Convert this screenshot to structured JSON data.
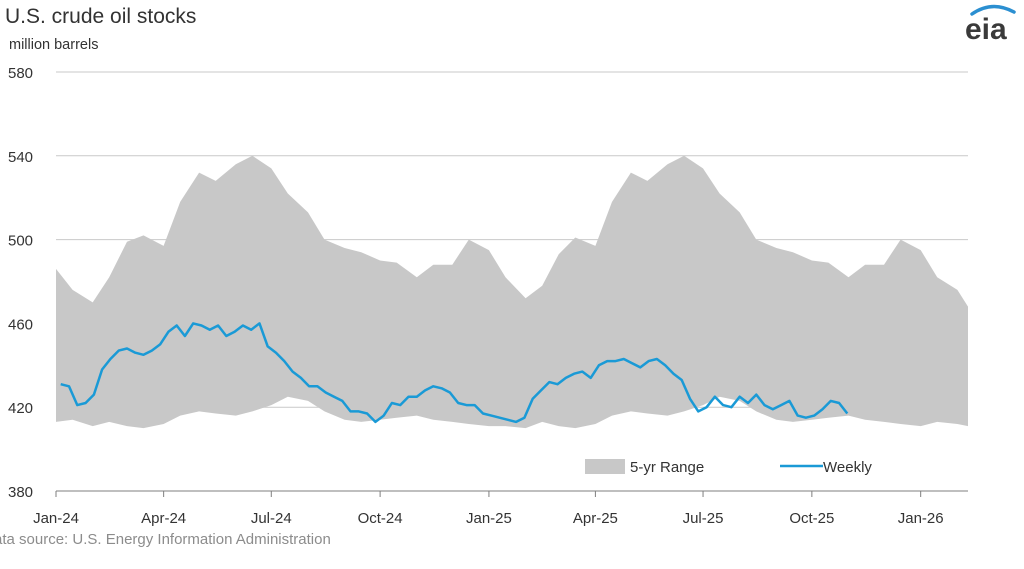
{
  "header": {
    "title": "U.S. crude oil stocks",
    "units": "million barrels",
    "logo_text": "eia",
    "logo_icon": "eia-logo-icon"
  },
  "footer": {
    "source": "ata source: U.S. Energy Information Administration"
  },
  "colors": {
    "range_fill": "#c8c8c8",
    "weekly_line": "#1a9ad6",
    "grid": "#c9c9c9",
    "axis": "#7f7f7f",
    "logo_swoosh": "#2b8fd1"
  },
  "chart_data": {
    "type": "area",
    "title": "U.S. crude oil stocks",
    "ylabel": "million barrels",
    "ylim": [
      380,
      580
    ],
    "yticks": [
      380,
      420,
      460,
      500,
      540,
      580
    ],
    "xlim": [
      "2024-01-01",
      "2026-02-10"
    ],
    "xticks": [
      {
        "date": "2024-01-01",
        "label": "Jan-24"
      },
      {
        "date": "2024-04-01",
        "label": "Apr-24"
      },
      {
        "date": "2024-07-01",
        "label": "Jul-24"
      },
      {
        "date": "2024-10-01",
        "label": "Oct-24"
      },
      {
        "date": "2025-01-01",
        "label": "Jan-25"
      },
      {
        "date": "2025-04-01",
        "label": "Apr-25"
      },
      {
        "date": "2025-07-01",
        "label": "Jul-25"
      },
      {
        "date": "2025-10-01",
        "label": "Oct-25"
      },
      {
        "date": "2026-01-01",
        "label": "Jan-26"
      }
    ],
    "grid": true,
    "legend_position": "bottom-right",
    "series": [
      {
        "name": "5-yr Range",
        "kind": "band",
        "x": [
          "2024-01-01",
          "2024-01-15",
          "2024-02-01",
          "2024-02-15",
          "2024-03-01",
          "2024-03-15",
          "2024-04-01",
          "2024-04-15",
          "2024-05-01",
          "2024-05-15",
          "2024-06-01",
          "2024-06-15",
          "2024-07-01",
          "2024-07-15",
          "2024-08-01",
          "2024-08-15",
          "2024-09-01",
          "2024-09-15",
          "2024-10-01",
          "2024-10-15",
          "2024-11-01",
          "2024-11-15",
          "2024-12-01",
          "2024-12-15",
          "2025-01-01",
          "2025-01-15",
          "2025-02-01",
          "2025-02-15",
          "2025-03-01",
          "2025-03-15",
          "2025-04-01",
          "2025-04-15",
          "2025-05-01",
          "2025-05-15",
          "2025-06-01",
          "2025-06-15",
          "2025-07-01",
          "2025-07-15",
          "2025-08-01",
          "2025-08-15",
          "2025-09-01",
          "2025-09-15",
          "2025-10-01",
          "2025-10-15",
          "2025-11-01",
          "2025-11-15",
          "2025-12-01",
          "2025-12-15",
          "2026-01-01",
          "2026-01-15",
          "2026-02-01",
          "2026-02-10"
        ],
        "high": [
          486,
          476,
          470,
          482,
          499,
          502,
          497,
          518,
          532,
          528,
          536,
          540,
          534,
          522,
          513,
          500,
          496,
          494,
          490,
          489,
          482,
          488,
          488,
          500,
          495,
          482,
          472,
          478,
          493,
          501,
          497,
          518,
          532,
          528,
          536,
          540,
          534,
          522,
          513,
          500,
          496,
          494,
          490,
          489,
          482,
          488,
          488,
          500,
          495,
          482,
          476,
          468
        ],
        "low": [
          413,
          414,
          411,
          413,
          411,
          410,
          412,
          416,
          418,
          417,
          416,
          418,
          421,
          425,
          423,
          418,
          414,
          413,
          414,
          415,
          416,
          414,
          413,
          412,
          411,
          411,
          410,
          413,
          411,
          410,
          412,
          416,
          418,
          417,
          416,
          418,
          421,
          425,
          423,
          418,
          414,
          413,
          414,
          415,
          416,
          414,
          413,
          412,
          411,
          413,
          412,
          411
        ]
      },
      {
        "name": "Weekly",
        "kind": "line",
        "x": [
          "2024-01-05",
          "2024-01-12",
          "2024-01-19",
          "2024-01-26",
          "2024-02-02",
          "2024-02-09",
          "2024-02-16",
          "2024-02-23",
          "2024-03-01",
          "2024-03-08",
          "2024-03-15",
          "2024-03-22",
          "2024-03-29",
          "2024-04-05",
          "2024-04-12",
          "2024-04-19",
          "2024-04-26",
          "2024-05-03",
          "2024-05-10",
          "2024-05-17",
          "2024-05-24",
          "2024-05-31",
          "2024-06-07",
          "2024-06-14",
          "2024-06-21",
          "2024-06-28",
          "2024-07-05",
          "2024-07-12",
          "2024-07-19",
          "2024-07-26",
          "2024-08-02",
          "2024-08-09",
          "2024-08-16",
          "2024-08-23",
          "2024-08-30",
          "2024-09-06",
          "2024-09-13",
          "2024-09-20",
          "2024-09-27",
          "2024-10-04",
          "2024-10-11",
          "2024-10-18",
          "2024-10-25",
          "2024-11-01",
          "2024-11-08",
          "2024-11-15",
          "2024-11-22",
          "2024-11-29",
          "2024-12-06",
          "2024-12-13",
          "2024-12-20",
          "2024-12-27",
          "2025-01-03",
          "2025-01-10",
          "2025-01-17",
          "2025-01-24",
          "2025-01-31",
          "2025-02-07",
          "2025-02-14",
          "2025-02-21",
          "2025-02-28",
          "2025-03-07",
          "2025-03-14",
          "2025-03-21",
          "2025-03-28",
          "2025-04-04",
          "2025-04-11",
          "2025-04-18",
          "2025-04-25",
          "2025-05-02",
          "2025-05-09",
          "2025-05-16",
          "2025-05-23",
          "2025-05-30",
          "2025-06-06",
          "2025-06-13",
          "2025-06-20",
          "2025-06-27",
          "2025-07-04",
          "2025-07-11",
          "2025-07-18",
          "2025-07-25",
          "2025-08-01",
          "2025-08-08",
          "2025-08-15",
          "2025-08-22",
          "2025-08-29",
          "2025-09-05",
          "2025-09-12",
          "2025-09-19",
          "2025-09-26",
          "2025-10-03",
          "2025-10-10",
          "2025-10-17",
          "2025-10-24",
          "2025-10-31"
        ],
        "values": [
          431,
          430,
          421,
          422,
          426,
          438,
          443,
          447,
          448,
          446,
          445,
          447,
          450,
          456,
          459,
          454,
          460,
          459,
          457,
          459,
          454,
          456,
          459,
          457,
          460,
          449,
          446,
          442,
          437,
          434,
          430,
          430,
          427,
          425,
          423,
          418,
          418,
          417,
          413,
          416,
          422,
          421,
          425,
          425,
          428,
          430,
          429,
          427,
          422,
          421,
          421,
          417,
          416,
          415,
          414,
          413,
          415,
          424,
          428,
          432,
          431,
          434,
          436,
          437,
          434,
          440,
          442,
          442,
          443,
          441,
          439,
          442,
          443,
          440,
          436,
          433,
          424,
          418,
          420,
          425,
          421,
          420,
          425,
          422,
          426,
          421,
          419,
          421,
          423,
          416,
          415,
          416,
          419,
          423,
          422,
          417
        ]
      }
    ]
  }
}
